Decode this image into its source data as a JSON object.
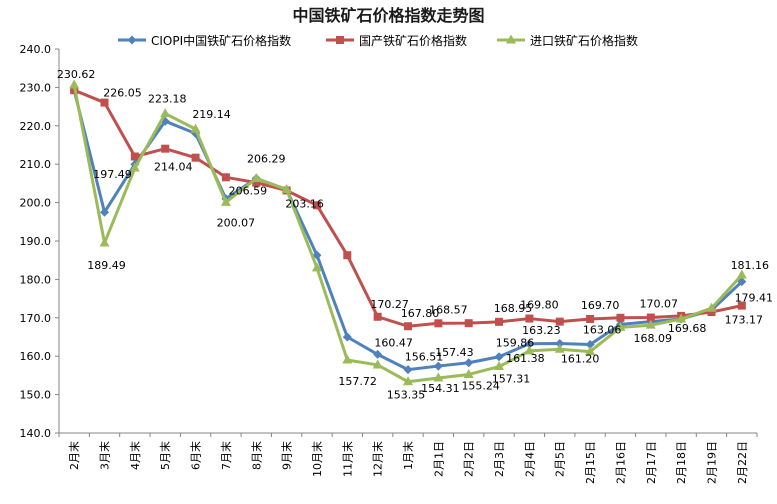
{
  "chart_data": {
    "type": "line",
    "title": "中国铁矿石价格指数走势图",
    "xlabel": "",
    "ylabel": "",
    "ylim": [
      140,
      240
    ],
    "ytick_step": 10,
    "grid": false,
    "legend_position": "top",
    "categories": [
      "2月末",
      "3月末",
      "4月末",
      "5月末",
      "6月末",
      "7月末",
      "8月末",
      "9月末",
      "10月末",
      "11月末",
      "12月末",
      "1月末",
      "2月1日",
      "2月2日",
      "2月3日",
      "2月4日",
      "2月5日",
      "2月15日",
      "2月16日",
      "2月17日",
      "2月18日",
      "2月19日",
      "2月22日"
    ],
    "series": [
      {
        "name": "CIOPI中国铁矿石价格指数",
        "color": "#4F81BD",
        "marker": "diamond",
        "values": [
          229.27,
          197.49,
          210.0,
          221.2,
          218.0,
          201.0,
          206.3,
          203.4,
          186.3,
          165.0,
          160.47,
          156.51,
          157.43,
          158.3,
          159.86,
          163.23,
          163.3,
          163.06,
          168.3,
          169.0,
          169.68,
          172.0,
          179.41
        ],
        "labels": {
          "1": "197.49",
          "10": "160.47",
          "11": "156.51",
          "12": "157.43",
          "14": "159.86",
          "15": "163.23",
          "17": "163.06",
          "22": "179.41"
        }
      },
      {
        "name": "国产铁矿石价格指数",
        "color": "#C0504D",
        "marker": "square",
        "values": [
          229.27,
          226.05,
          212.0,
          214.04,
          211.7,
          206.59,
          205.2,
          203.16,
          199.3,
          186.3,
          170.27,
          167.8,
          168.57,
          168.6,
          168.95,
          169.8,
          169.0,
          169.7,
          170.0,
          170.07,
          170.5,
          171.5,
          173.17
        ],
        "labels": {
          "1": "226.05",
          "3": "214.04",
          "5": "206.59",
          "7": "203.16",
          "10": "170.27",
          "11": "167.80",
          "12": "168.57",
          "14": "168.95",
          "15": "169.80",
          "17": "169.70",
          "19": "170.07",
          "22": "173.17"
        }
      },
      {
        "name": "进口铁矿石价格指数",
        "color": "#9BBB59",
        "marker": "triangle",
        "values": [
          230.62,
          189.49,
          209.0,
          223.18,
          219.14,
          200.07,
          206.29,
          203.4,
          183.0,
          159.0,
          157.72,
          153.35,
          154.31,
          155.24,
          157.31,
          161.38,
          161.8,
          161.2,
          167.5,
          168.09,
          169.68,
          172.5,
          181.16
        ],
        "labels": {
          "0": "230.62",
          "1": "189.49",
          "3": "223.18",
          "4": "219.14",
          "5": "200.07",
          "6": "206.29",
          "10": "157.72",
          "11": "153.35",
          "12": "154.31",
          "13": "155.24",
          "14": "157.31",
          "15": "161.38",
          "17": "161.20",
          "19": "168.09",
          "20": "169.68",
          "22": "181.16"
        }
      }
    ]
  }
}
